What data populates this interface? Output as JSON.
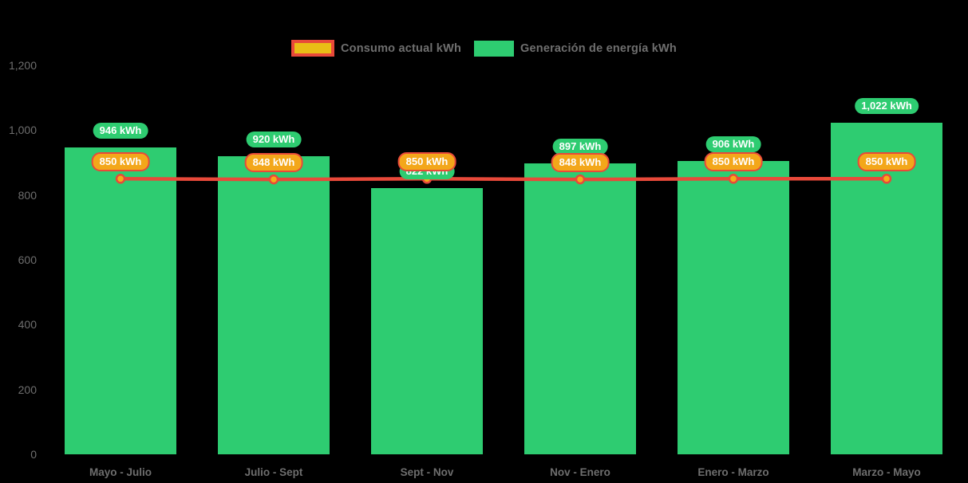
{
  "chart_data": {
    "type": "bar",
    "subtype": "bar-with-line-overlay",
    "categories": [
      "Mayo - Julio",
      "Julio - Sept",
      "Sept - Nov",
      "Nov - Enero",
      "Enero - Marzo",
      "Marzo - Mayo"
    ],
    "series": [
      {
        "name": "Consumo actual kWh",
        "type": "line",
        "values": [
          850,
          848,
          850,
          848,
          850,
          850
        ],
        "labels": [
          "850 kWh",
          "848 kWh",
          "850 kWh",
          "848 kWh",
          "850 kWh",
          "850 kWh"
        ],
        "line_color": "#e8493a",
        "marker_fill": "#f5ad18",
        "label_fill": "#f3a71a",
        "label_border": "#e8493a"
      },
      {
        "name": "Generación de energía kWh",
        "type": "bar",
        "values": [
          946,
          920,
          822,
          897,
          906,
          1022
        ],
        "labels": [
          "946 kWh",
          "920 kWh",
          "822 kWh",
          "897 kWh",
          "906 kWh",
          "1,022 kWh"
        ],
        "color": "#2ecc71",
        "label_fill": "#2ecc71"
      }
    ],
    "title": "",
    "xlabel": "",
    "ylabel": "",
    "ylim": [
      0,
      1200
    ],
    "yticks": [
      "1,200",
      "1,000",
      "800",
      "600",
      "400",
      "200",
      "0"
    ],
    "ytick_values": [
      1200,
      1000,
      800,
      600,
      400,
      200,
      0
    ],
    "grid": false,
    "legend_position": "top-center",
    "background": "#000000",
    "text_color": "#6e6e6e"
  },
  "colors": {
    "green": "#2ecc71",
    "red": "#e8493a",
    "gold": "#f3a71a",
    "gold_legend": "#e9bd16",
    "axis_text": "#6e6e6e"
  }
}
